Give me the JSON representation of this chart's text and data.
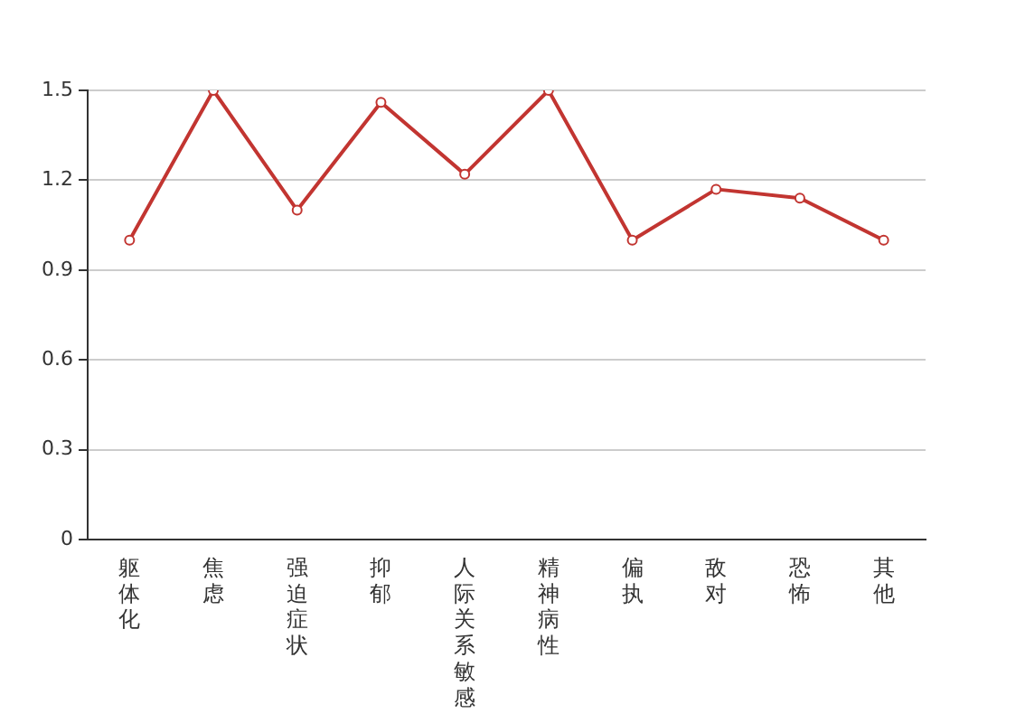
{
  "chart_data": {
    "type": "line",
    "categories": [
      "躯体化",
      "焦虑",
      "强迫症状",
      "抑郁",
      "人际关系敏感",
      "精神病性",
      "偏执",
      "敌对",
      "恐怖",
      "其他"
    ],
    "series": [
      {
        "color": "#c23531",
        "values": [
          1.0,
          1.5,
          1.1,
          1.46,
          1.22,
          1.5,
          1.0,
          1.17,
          1.14,
          1.0
        ]
      }
    ],
    "ylim": [
      0,
      1.5
    ],
    "yticks": [
      {
        "value": 0,
        "label": "0"
      },
      {
        "value": 0.3,
        "label": "0.3"
      },
      {
        "value": 0.6,
        "label": "0.6"
      },
      {
        "value": 0.9,
        "label": "0.9"
      },
      {
        "value": 1.2,
        "label": "1.2"
      },
      {
        "value": 1.5,
        "label": "1.5"
      }
    ],
    "grid": "y",
    "legend": false,
    "marker": "circle",
    "line_style": "solid"
  }
}
